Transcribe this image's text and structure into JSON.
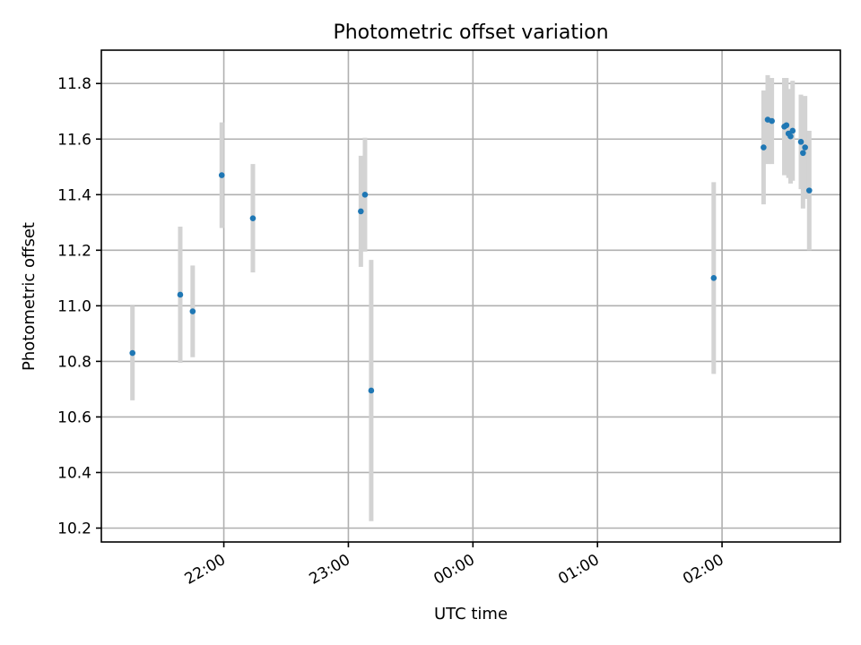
{
  "chart_data": {
    "type": "scatter",
    "title": "Photometric offset variation",
    "xlabel": "UTC time",
    "ylabel": "Photometric offset",
    "x_ticks": [
      "22:00",
      "23:00",
      "00:00",
      "01:00",
      "02:00"
    ],
    "y_ticks": [
      "10.2",
      "10.4",
      "10.6",
      "10.8",
      "11.0",
      "11.2",
      "11.4",
      "11.6",
      "11.8"
    ],
    "xlim": [
      "21:01",
      "02:57"
    ],
    "ylim": [
      10.15,
      11.92
    ],
    "grid": true,
    "error_bar_color": "#d3d3d3",
    "marker_color": "#1f77b4",
    "points": [
      {
        "x": "21:16",
        "y": 10.83,
        "err": 0.17
      },
      {
        "x": "21:39",
        "y": 11.04,
        "err": 0.245
      },
      {
        "x": "21:45",
        "y": 10.98,
        "err": 0.165
      },
      {
        "x": "21:59",
        "y": 11.47,
        "err": 0.19
      },
      {
        "x": "22:14",
        "y": 11.315,
        "err": 0.195
      },
      {
        "x": "23:06",
        "y": 11.34,
        "err": 0.2
      },
      {
        "x": "23:08",
        "y": 11.4,
        "err": 0.205
      },
      {
        "x": "23:11",
        "y": 10.695,
        "err": 0.47
      },
      {
        "x": "01:56",
        "y": 11.1,
        "err": 0.345
      },
      {
        "x": "02:20",
        "y": 11.57,
        "err": 0.205
      },
      {
        "x": "02:22",
        "y": 11.67,
        "err": 0.16
      },
      {
        "x": "02:24",
        "y": 11.665,
        "err": 0.155
      },
      {
        "x": "02:30",
        "y": 11.645,
        "err": 0.175
      },
      {
        "x": "02:31",
        "y": 11.65,
        "err": 0.17
      },
      {
        "x": "02:32",
        "y": 11.62,
        "err": 0.16
      },
      {
        "x": "02:33",
        "y": 11.61,
        "err": 0.17
      },
      {
        "x": "02:34",
        "y": 11.63,
        "err": 0.18
      },
      {
        "x": "02:38",
        "y": 11.59,
        "err": 0.17
      },
      {
        "x": "02:39",
        "y": 11.55,
        "err": 0.2
      },
      {
        "x": "02:40",
        "y": 11.57,
        "err": 0.185
      },
      {
        "x": "02:42",
        "y": 11.415,
        "err": 0.215
      }
    ]
  }
}
